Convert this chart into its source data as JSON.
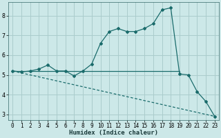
{
  "xlabel": "Humidex (Indice chaleur)",
  "bg_color": "#cce8e8",
  "grid_color": "#aacccc",
  "line_color": "#1a6b6b",
  "xlim": [
    -0.5,
    23.5
  ],
  "ylim": [
    2.7,
    8.7
  ],
  "xticks": [
    0,
    1,
    2,
    3,
    4,
    5,
    6,
    7,
    8,
    9,
    10,
    11,
    12,
    13,
    14,
    15,
    16,
    17,
    18,
    19,
    20,
    21,
    22,
    23
  ],
  "yticks": [
    3,
    4,
    5,
    6,
    7,
    8
  ],
  "series1_x": [
    0,
    1,
    2,
    3,
    4,
    5,
    6,
    7,
    8,
    9,
    10,
    11,
    12,
    13,
    14,
    15,
    16,
    17,
    18,
    19,
    20,
    21,
    22,
    23
  ],
  "series1_y": [
    5.2,
    5.15,
    5.2,
    5.3,
    5.5,
    5.2,
    5.2,
    4.95,
    5.2,
    5.55,
    6.6,
    7.2,
    7.35,
    7.2,
    7.2,
    7.35,
    7.6,
    8.3,
    8.4,
    5.05,
    5.0,
    4.15,
    3.65,
    2.9
  ],
  "series2_x": [
    0,
    1,
    2,
    3,
    4,
    5,
    6,
    7,
    8,
    9,
    10,
    11,
    12,
    13,
    14,
    15,
    16,
    17,
    18,
    19
  ],
  "series2_y": [
    5.2,
    5.2,
    5.2,
    5.2,
    5.2,
    5.2,
    5.2,
    5.2,
    5.2,
    5.2,
    5.2,
    5.2,
    5.2,
    5.2,
    5.2,
    5.2,
    5.2,
    5.2,
    5.2,
    5.2
  ],
  "series3_x": [
    0,
    23
  ],
  "series3_y": [
    5.2,
    2.9
  ]
}
